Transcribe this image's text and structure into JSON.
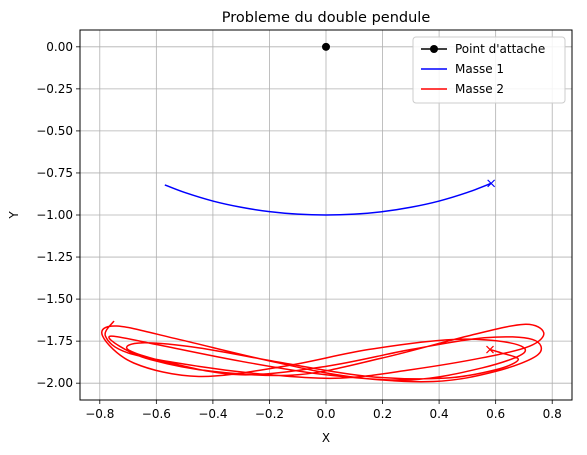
{
  "chart_data": {
    "type": "line",
    "title": "Probleme du double pendule",
    "xlabel": "X",
    "ylabel": "Y",
    "xlim": [
      -0.87,
      0.87
    ],
    "ylim": [
      -2.1,
      0.1
    ],
    "x_ticks": [
      -0.8,
      -0.6,
      -0.4,
      -0.2,
      0.0,
      0.2,
      0.4,
      0.6,
      0.8
    ],
    "x_tick_labels": [
      "−0.8",
      "−0.6",
      "−0.4",
      "−0.2",
      "0.0",
      "0.2",
      "0.4",
      "0.6",
      "0.8"
    ],
    "y_ticks": [
      0.0,
      -0.25,
      -0.5,
      -0.75,
      -1.0,
      -1.25,
      -1.5,
      -1.75,
      -2.0
    ],
    "y_tick_labels": [
      "0.00",
      "−0.25",
      "−0.50",
      "−0.75",
      "−1.00",
      "−1.25",
      "−1.50",
      "−1.75",
      "−2.00"
    ],
    "grid": true,
    "legend_position": "top-right",
    "anchor": {
      "name": "Point d'attache",
      "x": 0.0,
      "y": 0.0,
      "color": "#000000"
    },
    "series": [
      {
        "name": "Masse 1",
        "color": "#0000ff",
        "end_marker": [
          0.584,
          -0.812
        ],
        "x": [
          -0.57,
          -0.5,
          -0.4,
          -0.3,
          -0.2,
          -0.1,
          0.0,
          0.1,
          0.2,
          0.3,
          0.4,
          0.5,
          0.584
        ],
        "y": [
          -0.821,
          -0.866,
          -0.917,
          -0.954,
          -0.98,
          -0.995,
          -1.0,
          -0.995,
          -0.98,
          -0.954,
          -0.917,
          -0.866,
          -0.812
        ]
      },
      {
        "name": "Masse 2",
        "color": "#ff0000",
        "end_marker": [
          0.58,
          -1.8
        ],
        "x": [
          -0.75,
          -0.78,
          -0.7,
          -0.45,
          -0.2,
          0.05,
          0.3,
          0.55,
          0.72,
          0.77,
          0.7,
          0.5,
          0.2,
          -0.1,
          -0.4,
          -0.62,
          -0.73,
          -0.76,
          -0.6,
          -0.3,
          0.0,
          0.3,
          0.55,
          0.7,
          0.65,
          0.45,
          0.15,
          -0.15,
          -0.45,
          -0.68,
          -0.79,
          -0.74,
          -0.52,
          -0.22,
          0.08,
          0.38,
          0.6,
          0.75,
          0.73,
          0.56,
          0.3,
          0.0,
          -0.3,
          -0.55,
          -0.7,
          -0.65,
          -0.45,
          -0.15,
          0.15,
          0.42,
          0.6,
          0.68,
          0.62,
          0.58
        ],
        "y": [
          -1.63,
          -1.72,
          -1.82,
          -1.9,
          -1.95,
          -1.97,
          -1.92,
          -1.85,
          -1.78,
          -1.7,
          -1.65,
          -1.72,
          -1.85,
          -1.95,
          -1.93,
          -1.86,
          -1.78,
          -1.72,
          -1.77,
          -1.87,
          -1.95,
          -1.98,
          -1.91,
          -1.82,
          -1.76,
          -1.74,
          -1.8,
          -1.9,
          -1.96,
          -1.88,
          -1.72,
          -1.66,
          -1.74,
          -1.86,
          -1.96,
          -1.99,
          -1.93,
          -1.83,
          -1.74,
          -1.73,
          -1.8,
          -1.9,
          -1.95,
          -1.88,
          -1.8,
          -1.76,
          -1.79,
          -1.88,
          -1.96,
          -1.97,
          -1.92,
          -1.86,
          -1.82,
          -1.8
        ]
      }
    ]
  }
}
